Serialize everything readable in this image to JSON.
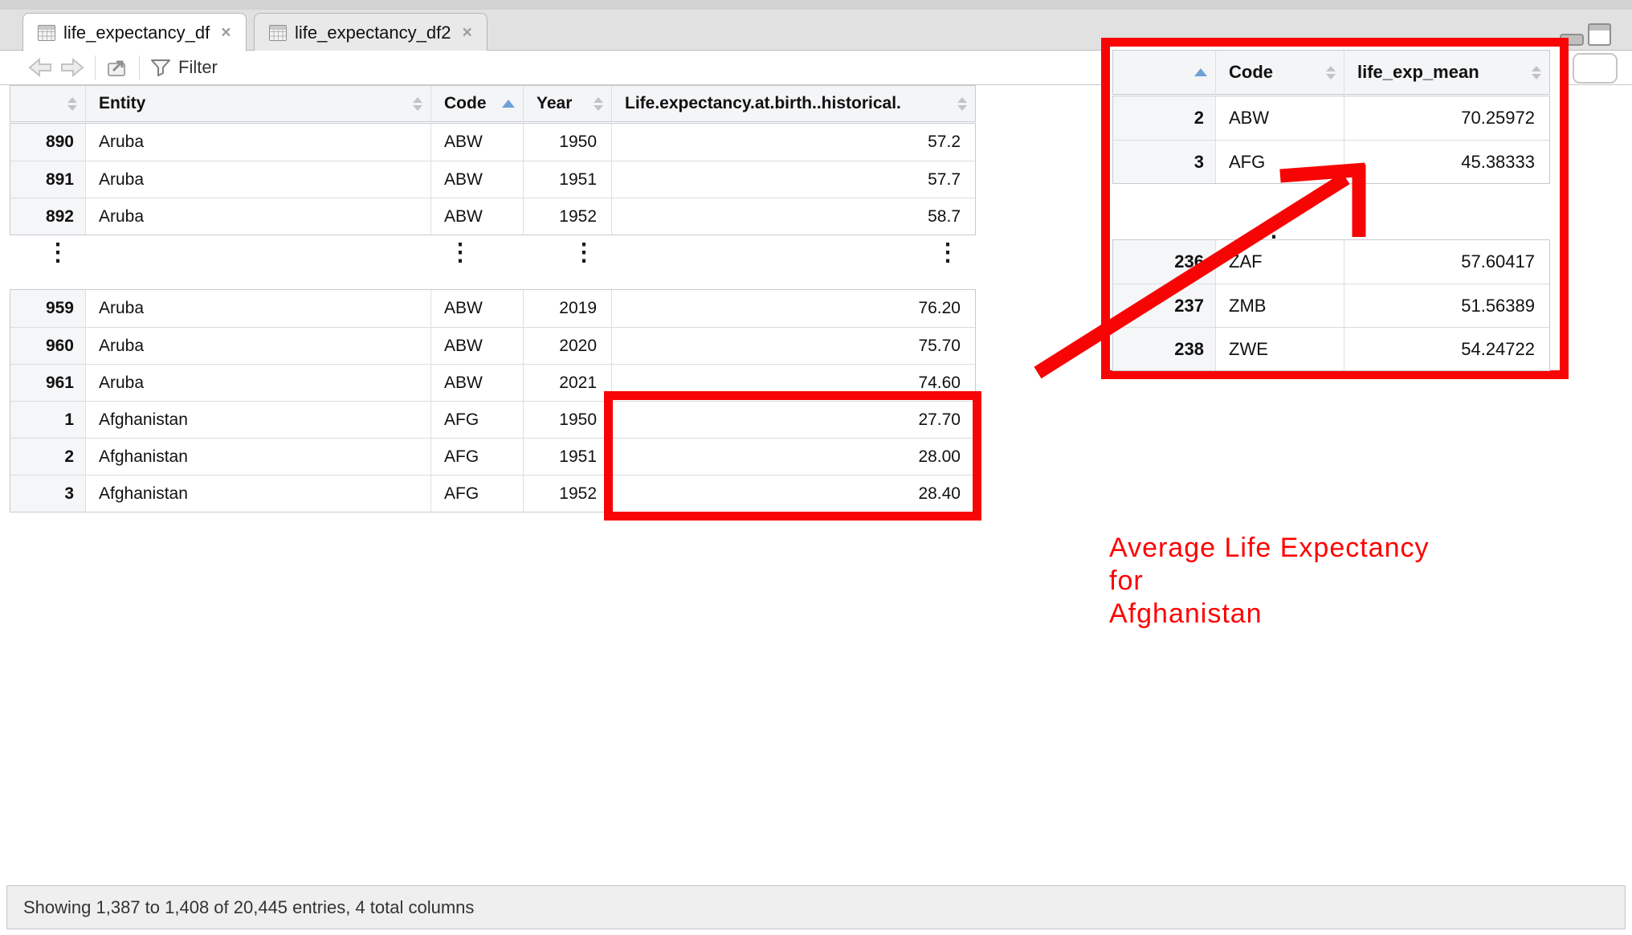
{
  "tabs": [
    {
      "label": "life_expectancy_df",
      "close_glyph": "×",
      "active": true
    },
    {
      "label": "life_expectancy_df2",
      "close_glyph": "×",
      "active": false
    }
  ],
  "toolbar": {
    "filter_label": "Filter"
  },
  "main_table": {
    "headers": [
      {
        "label": "",
        "sort": "both"
      },
      {
        "label": "Entity",
        "sort": "both"
      },
      {
        "label": "Code",
        "sort": "asc"
      },
      {
        "label": "Year",
        "sort": "both"
      },
      {
        "label": "Life.expectancy.at.birth..historical.",
        "sort": "both"
      }
    ],
    "block1": [
      {
        "num": "890",
        "entity": "Aruba",
        "code": "ABW",
        "year": "1950",
        "value": "57.2"
      },
      {
        "num": "891",
        "entity": "Aruba",
        "code": "ABW",
        "year": "1951",
        "value": "57.7"
      },
      {
        "num": "892",
        "entity": "Aruba",
        "code": "ABW",
        "year": "1952",
        "value": "58.7"
      }
    ],
    "block2": [
      {
        "num": "959",
        "entity": "Aruba",
        "code": "ABW",
        "year": "2019",
        "value": "76.20"
      },
      {
        "num": "960",
        "entity": "Aruba",
        "code": "ABW",
        "year": "2020",
        "value": "75.70"
      },
      {
        "num": "961",
        "entity": "Aruba",
        "code": "ABW",
        "year": "2021",
        "value": "74.60"
      },
      {
        "num": "1",
        "entity": "Afghanistan",
        "code": "AFG",
        "year": "1950",
        "value": "27.70"
      },
      {
        "num": "2",
        "entity": "Afghanistan",
        "code": "AFG",
        "year": "1951",
        "value": "28.00"
      },
      {
        "num": "3",
        "entity": "Afghanistan",
        "code": "AFG",
        "year": "1952",
        "value": "28.40"
      }
    ],
    "ellipsis": "⋮"
  },
  "overlay_table": {
    "headers": [
      {
        "label": "",
        "sort": "asc"
      },
      {
        "label": "Code",
        "sort": "both"
      },
      {
        "label": "life_exp_mean",
        "sort": "both"
      }
    ],
    "block1": [
      {
        "num": "2",
        "code": "ABW",
        "value": "70.25972"
      },
      {
        "num": "3",
        "code": "AFG",
        "value": "45.38333"
      }
    ],
    "block2": [
      {
        "num": "236",
        "code": "ZAF",
        "value": "57.60417"
      },
      {
        "num": "237",
        "code": "ZMB",
        "value": "51.56389"
      },
      {
        "num": "238",
        "code": "ZWE",
        "value": "54.24722"
      }
    ],
    "ellipsis": "⋮"
  },
  "annotation": {
    "lines": [
      "Average Life Expectancy",
      "for",
      "Afghanistan"
    ],
    "color": "#ff0000"
  },
  "status_bar": {
    "text": "Showing 1,387 to 1,408 of 20,445 entries, 4 total columns"
  },
  "colors": {
    "annotation_red": "#f70505",
    "sort_active_blue": "#6fa1d9"
  }
}
